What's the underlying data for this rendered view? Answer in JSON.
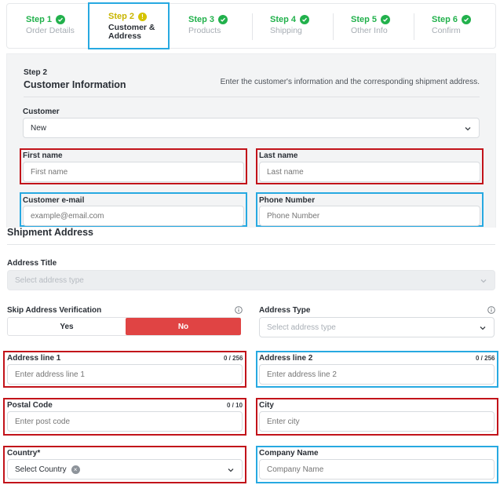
{
  "colors": {
    "success": "#22b14c",
    "warning": "#d5c300",
    "danger": "#e04444",
    "highlight_red": "#c2131a",
    "highlight_blue": "#27a9e1"
  },
  "stepper": {
    "steps": [
      {
        "num": "Step 1",
        "name": "Order Details",
        "status": "done",
        "icon": "check-icon"
      },
      {
        "num": "Step 2",
        "name": "Customer & Address",
        "status": "current",
        "icon": "warning-icon"
      },
      {
        "num": "Step 3",
        "name": "Products",
        "status": "done",
        "icon": "check-icon"
      },
      {
        "num": "Step 4",
        "name": "Shipping",
        "status": "done",
        "icon": "check-icon"
      },
      {
        "num": "Step 5",
        "name": "Other Info",
        "status": "done",
        "icon": "check-icon"
      },
      {
        "num": "Step 6",
        "name": "Confirm",
        "status": "done",
        "icon": "check-icon"
      }
    ],
    "warning_glyph": "!"
  },
  "customer_section": {
    "step": "Step 2",
    "title": "Customer Information",
    "description": "Enter the customer's information and the corresponding shipment address.",
    "customer_label": "Customer",
    "customer_value": "New",
    "first_name": {
      "label": "First name",
      "placeholder": "First name"
    },
    "last_name": {
      "label": "Last name",
      "placeholder": "Last name"
    },
    "email": {
      "label": "Customer e-mail",
      "placeholder": "example@email.com"
    },
    "phone": {
      "label": "Phone Number",
      "placeholder": "Phone Number"
    }
  },
  "shipment": {
    "title": "Shipment Address",
    "address_title": {
      "label": "Address Title",
      "placeholder": "Select address type"
    },
    "skip_verification": {
      "label": "Skip Address Verification",
      "yes": "Yes",
      "no": "No",
      "selected": "No"
    },
    "address_type": {
      "label": "Address Type",
      "placeholder": "Select address type"
    },
    "address_line1": {
      "label": "Address line 1",
      "counter": "0 / 256",
      "placeholder": "Enter address line 1"
    },
    "address_line2": {
      "label": "Address line 2",
      "counter": "0 / 256",
      "placeholder": "Enter address line 2"
    },
    "postal_code": {
      "label": "Postal Code",
      "counter": "0 / 10",
      "placeholder": "Enter post code"
    },
    "city": {
      "label": "City",
      "placeholder": "Enter city"
    },
    "country": {
      "label": "Country*",
      "value": "Select Country",
      "clear_glyph": "×"
    },
    "company": {
      "label": "Company Name",
      "placeholder": "Company Name"
    }
  }
}
